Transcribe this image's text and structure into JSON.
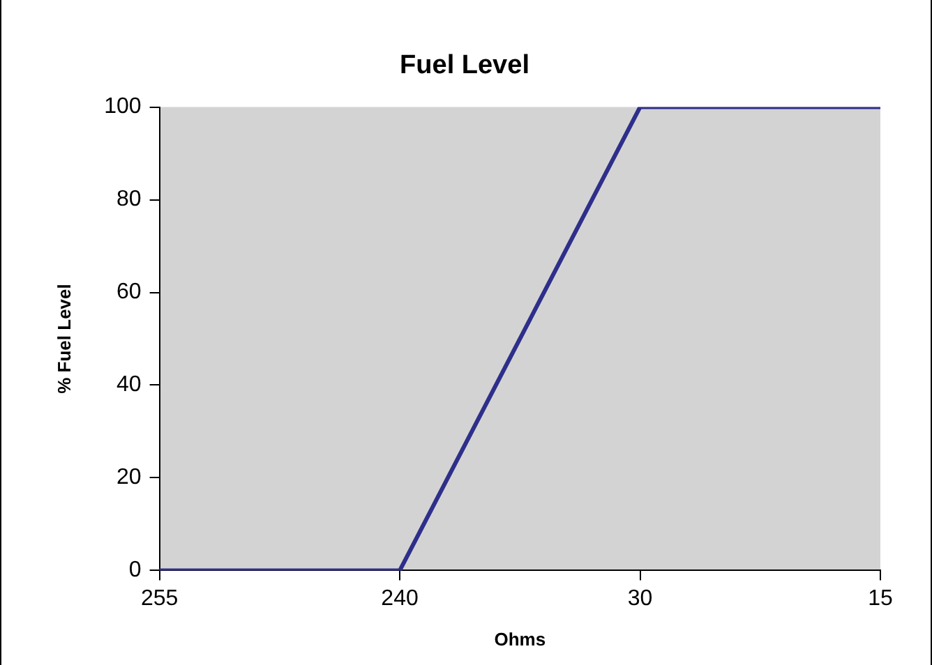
{
  "chart_data": {
    "type": "line",
    "title": "Fuel Level",
    "xlabel": "Ohms",
    "ylabel": "% Fuel Level",
    "categories": [
      "255",
      "240",
      "30",
      "15"
    ],
    "series": [
      {
        "color": "#2e2f8a",
        "values": [
          0,
          0,
          100,
          100
        ]
      }
    ],
    "ylim": [
      0,
      100
    ],
    "yticks": [
      0,
      20,
      40,
      60,
      80,
      100
    ],
    "grid": false,
    "legend": false,
    "marker": "none",
    "line_style": "solid"
  }
}
